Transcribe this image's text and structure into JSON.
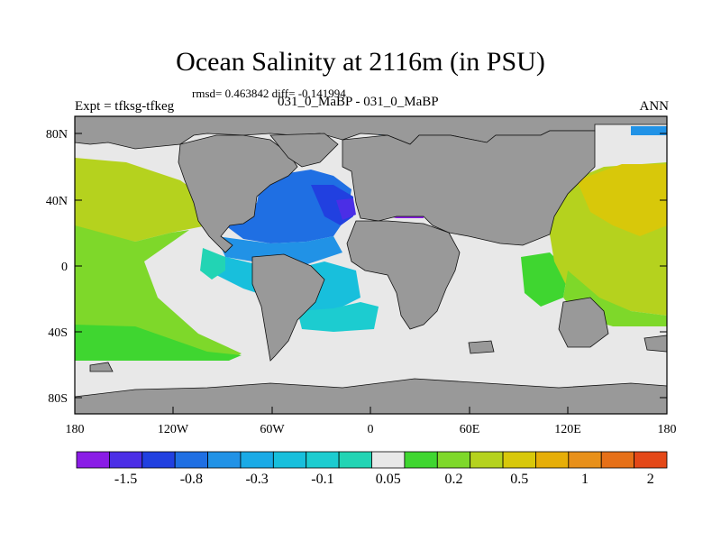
{
  "title": "Ocean Salinity at 2116m (in PSU)",
  "stats": "rmsd= 0.463842 diff= -0.141994",
  "subtitle": "031_0_MaBP - 031_0_MaBP",
  "left_label": "Expt = tfksg-tfkeg",
  "right_label": "ANN",
  "lat_ticks": [
    "80N",
    "40N",
    "0",
    "40S",
    "80S"
  ],
  "lon_ticks": [
    "180",
    "120W",
    "60W",
    "0",
    "60E",
    "120E",
    "180"
  ],
  "colorbar": {
    "colors": [
      "#8a1ce6",
      "#4b2ee6",
      "#2140e0",
      "#1f6fe3",
      "#2192e6",
      "#1aaae6",
      "#18bfdc",
      "#1cccd0",
      "#22d4b4",
      "#e8e8e8",
      "#3fd630",
      "#7ed82a",
      "#b5d21e",
      "#d8c80a",
      "#e6ae08",
      "#e8901a",
      "#e67018",
      "#e44818"
    ],
    "labels": [
      "-1.5",
      "-0.8",
      "-0.3",
      "-0.1",
      "0.05",
      "0.2",
      "0.5",
      "1",
      "2"
    ]
  },
  "colors": {
    "land": "#999999",
    "ocean_neutral": "#e8e8e8"
  }
}
